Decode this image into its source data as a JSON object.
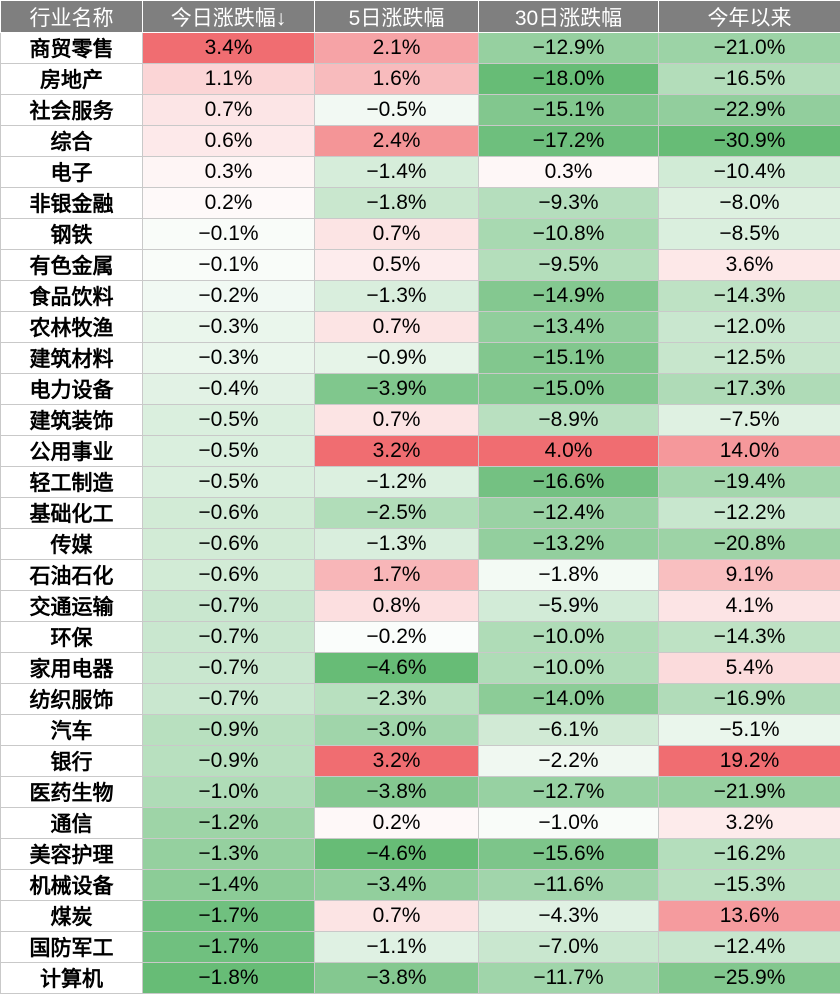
{
  "chart_data": {
    "type": "table",
    "columns": [
      "行业名称",
      "今日涨跌幅↓",
      "5日涨跌幅",
      "30日涨跌幅",
      "今年以来"
    ],
    "rows": [
      [
        "商贸零售",
        "3.4%",
        "2.1%",
        "−12.9%",
        "−21.0%"
      ],
      [
        "房地产",
        "1.1%",
        "1.6%",
        "−18.0%",
        "−16.5%"
      ],
      [
        "社会服务",
        "0.7%",
        "−0.5%",
        "−15.1%",
        "−22.9%"
      ],
      [
        "综合",
        "0.6%",
        "2.4%",
        "−17.2%",
        "−30.9%"
      ],
      [
        "电子",
        "0.3%",
        "−1.4%",
        "0.3%",
        "−10.4%"
      ],
      [
        "非银金融",
        "0.2%",
        "−1.8%",
        "−9.3%",
        "−8.0%"
      ],
      [
        "钢铁",
        "−0.1%",
        "0.7%",
        "−10.8%",
        "−8.5%"
      ],
      [
        "有色金属",
        "−0.1%",
        "0.5%",
        "−9.5%",
        "3.6%"
      ],
      [
        "食品饮料",
        "−0.2%",
        "−1.3%",
        "−14.9%",
        "−14.3%"
      ],
      [
        "农林牧渔",
        "−0.3%",
        "0.7%",
        "−13.4%",
        "−12.0%"
      ],
      [
        "建筑材料",
        "−0.3%",
        "−0.9%",
        "−15.1%",
        "−12.5%"
      ],
      [
        "电力设备",
        "−0.4%",
        "−3.9%",
        "−15.0%",
        "−17.3%"
      ],
      [
        "建筑装饰",
        "−0.5%",
        "0.7%",
        "−8.9%",
        "−7.5%"
      ],
      [
        "公用事业",
        "−0.5%",
        "3.2%",
        "4.0%",
        "14.0%"
      ],
      [
        "轻工制造",
        "−0.5%",
        "−1.2%",
        "−16.6%",
        "−19.4%"
      ],
      [
        "基础化工",
        "−0.6%",
        "−2.5%",
        "−12.4%",
        "−12.2%"
      ],
      [
        "传媒",
        "−0.6%",
        "−1.3%",
        "−13.2%",
        "−20.8%"
      ],
      [
        "石油石化",
        "−0.6%",
        "1.7%",
        "−1.8%",
        "9.1%"
      ],
      [
        "交通运输",
        "−0.7%",
        "0.8%",
        "−5.9%",
        "4.1%"
      ],
      [
        "环保",
        "−0.7%",
        "−0.2%",
        "−10.0%",
        "−14.3%"
      ],
      [
        "家用电器",
        "−0.7%",
        "−4.6%",
        "−10.0%",
        "5.4%"
      ],
      [
        "纺织服饰",
        "−0.7%",
        "−2.3%",
        "−14.0%",
        "−16.9%"
      ],
      [
        "汽车",
        "−0.9%",
        "−3.0%",
        "−6.1%",
        "−5.1%"
      ],
      [
        "银行",
        "−0.9%",
        "3.2%",
        "−2.2%",
        "19.2%"
      ],
      [
        "医药生物",
        "−1.0%",
        "−3.8%",
        "−12.7%",
        "−21.9%"
      ],
      [
        "通信",
        "−1.2%",
        "0.2%",
        "−1.0%",
        "3.2%"
      ],
      [
        "美容护理",
        "−1.3%",
        "−4.6%",
        "−15.6%",
        "−16.2%"
      ],
      [
        "机械设备",
        "−1.4%",
        "−3.4%",
        "−11.6%",
        "−15.3%"
      ],
      [
        "煤炭",
        "−1.7%",
        "0.7%",
        "−4.3%",
        "13.6%"
      ],
      [
        "国防军工",
        "−1.7%",
        "−1.1%",
        "−7.0%",
        "−12.4%"
      ],
      [
        "计算机",
        "−1.8%",
        "−3.8%",
        "−11.7%",
        "−25.9%"
      ]
    ],
    "sorted_by": "今日涨跌幅",
    "sort_order": "descending",
    "colors": {
      "header_bg": "#7f7f7f",
      "header_text": "#ffffff",
      "positive": "#f06a6e",
      "negative": "#5fb86f",
      "neutral": "#ffffff",
      "grid": "#c9c9c9"
    }
  }
}
